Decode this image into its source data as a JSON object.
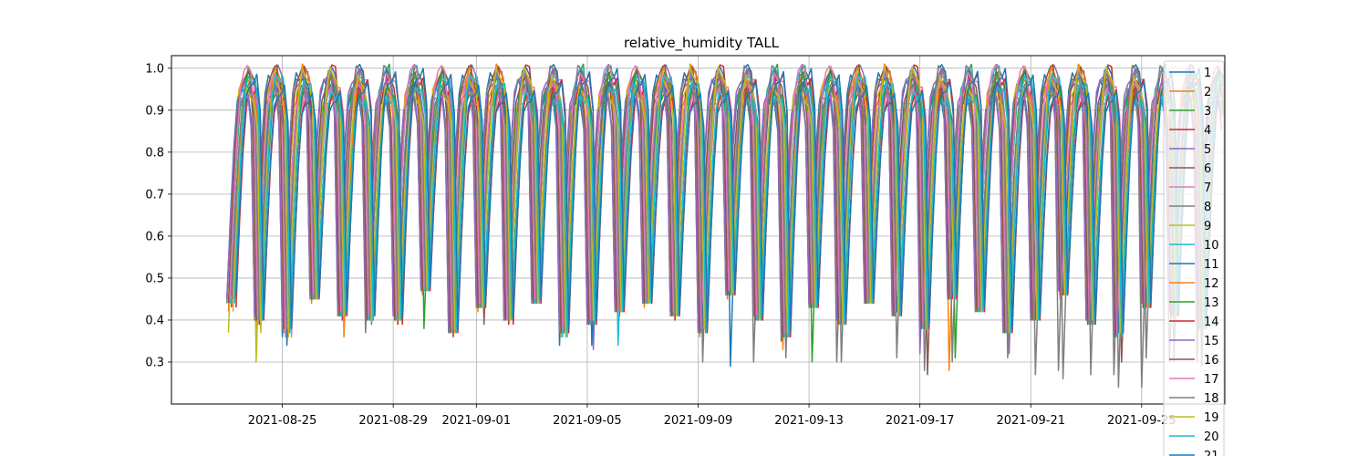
{
  "chart_data": {
    "type": "line",
    "title": "relative_humidity TALL",
    "xlabel": "",
    "ylabel": "",
    "x_start": "2021-08-23",
    "x_end": "2021-09-27",
    "xlim": [
      "2021-08-21",
      "2021-09-28"
    ],
    "ylim": [
      0.2,
      1.03
    ],
    "x_ticks": [
      "2021-08-25",
      "2021-08-29",
      "2021-09-01",
      "2021-09-05",
      "2021-09-09",
      "2021-09-13",
      "2021-09-17",
      "2021-09-21",
      "2021-09-25"
    ],
    "y_ticks": [
      0.3,
      0.4,
      0.5,
      0.6,
      0.7,
      0.8,
      0.9,
      1.0
    ],
    "grid": true,
    "legend_position": "right",
    "samples_per_day": 8,
    "series": [
      {
        "name": "1",
        "color": "#1f77b4",
        "lows": [
          0.45,
          0.4,
          0.36,
          0.46,
          0.43,
          0.42,
          0.41,
          0.48,
          0.37,
          0.44,
          0.4,
          0.45,
          0.34,
          0.39,
          0.43,
          0.46,
          0.42,
          0.38,
          0.47,
          0.41,
          0.35,
          0.44,
          0.4,
          0.45,
          0.42,
          0.39,
          0.46,
          0.43,
          0.38,
          0.41,
          0.47,
          0.4,
          0.36,
          0.44,
          0.42,
          0.39
        ]
      },
      {
        "name": "2",
        "color": "#ff7f0e",
        "lows": [
          0.42,
          0.38,
          0.37,
          0.44,
          0.41,
          0.43,
          0.4,
          0.46,
          0.38,
          0.42,
          0.41,
          0.44,
          0.36,
          0.4,
          0.42,
          0.43,
          0.41,
          0.36,
          0.45,
          0.4,
          0.33,
          0.43,
          0.39,
          0.44,
          0.41,
          0.38,
          0.28,
          0.42,
          0.37,
          0.4,
          0.45,
          0.39,
          0.37,
          0.43,
          0.41,
          0.38
        ]
      },
      {
        "name": "3",
        "color": "#2ca02c",
        "lows": [
          0.44,
          0.41,
          0.38,
          0.45,
          0.42,
          0.4,
          0.42,
          0.38,
          0.39,
          0.43,
          0.42,
          0.46,
          0.38,
          0.41,
          0.44,
          0.45,
          0.43,
          0.4,
          0.46,
          0.42,
          0.37,
          0.3,
          0.41,
          0.46,
          0.43,
          0.4,
          0.47,
          0.44,
          0.39,
          0.42,
          0.46,
          0.41,
          0.38,
          0.45,
          0.43,
          0.4
        ]
      },
      {
        "name": "4",
        "color": "#d62728",
        "lows": [
          0.43,
          0.39,
          0.39,
          0.45,
          0.4,
          0.41,
          0.39,
          0.47,
          0.36,
          0.43,
          0.39,
          0.44,
          0.37,
          0.4,
          0.41,
          0.44,
          0.4,
          0.32,
          0.46,
          0.4,
          0.36,
          0.43,
          0.39,
          0.45,
          0.42,
          0.38,
          0.45,
          0.42,
          0.37,
          0.4,
          0.46,
          0.39,
          0.37,
          0.43,
          0.41,
          0.38
        ]
      },
      {
        "name": "5",
        "color": "#9467bd",
        "lows": [
          0.46,
          0.42,
          0.4,
          0.47,
          0.43,
          0.39,
          0.43,
          0.49,
          0.38,
          0.45,
          0.42,
          0.46,
          0.39,
          0.33,
          0.43,
          0.45,
          0.42,
          0.38,
          0.47,
          0.41,
          0.37,
          0.44,
          0.4,
          0.46,
          0.43,
          0.39,
          0.47,
          0.43,
          0.32,
          0.42,
          0.47,
          0.41,
          0.38,
          0.44,
          0.42,
          0.4
        ]
      },
      {
        "name": "6",
        "color": "#8c564b",
        "lows": [
          0.44,
          0.4,
          0.38,
          0.46,
          0.42,
          0.4,
          0.4,
          0.47,
          0.37,
          0.39,
          0.41,
          0.45,
          0.38,
          0.4,
          0.42,
          0.45,
          0.41,
          0.37,
          0.46,
          0.4,
          0.36,
          0.43,
          0.4,
          0.44,
          0.42,
          0.27,
          0.46,
          0.42,
          0.38,
          0.41,
          0.46,
          0.4,
          0.3,
          0.44,
          0.41,
          0.39
        ]
      },
      {
        "name": "7",
        "color": "#e377c2",
        "lows": [
          0.45,
          0.41,
          0.36,
          0.46,
          0.42,
          0.41,
          0.41,
          0.48,
          0.38,
          0.44,
          0.4,
          0.45,
          0.38,
          0.4,
          0.42,
          0.45,
          0.42,
          0.38,
          0.47,
          0.41,
          0.37,
          0.44,
          0.4,
          0.45,
          0.42,
          0.39,
          0.46,
          0.43,
          0.38,
          0.41,
          0.46,
          0.4,
          0.37,
          0.44,
          0.42,
          0.39
        ]
      },
      {
        "name": "8",
        "color": "#7f7f7f",
        "lows": [
          0.44,
          0.4,
          0.38,
          0.45,
          0.41,
          0.37,
          0.42,
          0.47,
          0.37,
          0.43,
          0.4,
          0.44,
          0.37,
          0.39,
          0.42,
          0.44,
          0.41,
          0.37,
          0.46,
          0.3,
          0.36,
          0.43,
          0.3,
          0.44,
          0.41,
          0.38,
          0.45,
          0.42,
          0.37,
          0.4,
          0.28,
          0.4,
          0.27,
          0.24,
          0.3,
          0.3
        ]
      },
      {
        "name": "9",
        "color": "#bcbd22",
        "lows": [
          0.37,
          0.3,
          0.37,
          0.45,
          0.41,
          0.4,
          0.4,
          0.47,
          0.38,
          0.43,
          0.4,
          0.44,
          0.36,
          0.4,
          0.42,
          0.44,
          0.41,
          0.38,
          0.46,
          0.4,
          0.54,
          0.43,
          0.39,
          0.44,
          0.42,
          0.38,
          0.46,
          0.42,
          0.37,
          0.4,
          0.46,
          0.4,
          0.37,
          0.43,
          0.41,
          0.39
        ]
      },
      {
        "name": "10",
        "color": "#17becf",
        "lows": [
          0.44,
          0.4,
          0.37,
          0.45,
          0.41,
          0.4,
          0.4,
          0.47,
          0.37,
          0.43,
          0.4,
          0.44,
          0.36,
          0.39,
          0.34,
          0.44,
          0.41,
          0.37,
          0.46,
          0.4,
          0.36,
          0.43,
          0.39,
          0.44,
          0.41,
          0.38,
          0.45,
          0.42,
          0.37,
          0.4,
          0.46,
          0.39,
          0.36,
          0.43,
          0.41,
          0.38
        ]
      },
      {
        "name": "11",
        "color": "#1f77b4",
        "lows": [
          0.46,
          0.41,
          0.34,
          0.46,
          0.42,
          0.41,
          0.41,
          0.48,
          0.38,
          0.44,
          0.41,
          0.45,
          0.38,
          0.34,
          0.43,
          0.45,
          0.42,
          0.38,
          0.29,
          0.41,
          0.37,
          0.44,
          0.4,
          0.45,
          0.42,
          0.39,
          0.46,
          0.43,
          0.38,
          0.41,
          0.47,
          0.4,
          0.37,
          0.44,
          0.42,
          0.39
        ]
      },
      {
        "name": "12",
        "color": "#ff7f0e",
        "lows": [
          0.45,
          0.4,
          0.37,
          0.45,
          0.36,
          0.4,
          0.4,
          0.48,
          0.37,
          0.44,
          0.4,
          0.45,
          0.37,
          0.4,
          0.42,
          0.45,
          0.42,
          0.38,
          0.47,
          0.41,
          0.36,
          0.44,
          0.4,
          0.45,
          0.42,
          0.38,
          0.46,
          0.43,
          0.38,
          0.41,
          0.46,
          0.4,
          0.37,
          0.44,
          0.42,
          0.39
        ]
      },
      {
        "name": "13",
        "color": "#2ca02c",
        "lows": [
          0.44,
          0.41,
          0.38,
          0.46,
          0.42,
          0.4,
          0.41,
          0.47,
          0.38,
          0.44,
          0.41,
          0.45,
          0.38,
          0.4,
          0.43,
          0.45,
          0.42,
          0.39,
          0.47,
          0.41,
          0.38,
          0.44,
          0.4,
          0.45,
          0.43,
          0.39,
          0.31,
          0.43,
          0.39,
          0.41,
          0.47,
          0.41,
          0.38,
          0.44,
          0.42,
          0.4
        ]
      },
      {
        "name": "14",
        "color": "#d62728",
        "lows": [
          0.43,
          0.4,
          0.38,
          0.45,
          0.41,
          0.41,
          0.39,
          0.47,
          0.37,
          0.43,
          0.39,
          0.44,
          0.37,
          0.39,
          0.42,
          0.44,
          0.41,
          0.37,
          0.46,
          0.4,
          0.36,
          0.43,
          0.39,
          0.44,
          0.41,
          0.38,
          0.45,
          0.42,
          0.37,
          0.4,
          0.46,
          0.39,
          0.37,
          0.43,
          0.41,
          0.38
        ]
      },
      {
        "name": "15",
        "color": "#9467bd",
        "lows": [
          0.45,
          0.41,
          0.39,
          0.46,
          0.42,
          0.4,
          0.41,
          0.48,
          0.38,
          0.44,
          0.4,
          0.45,
          0.38,
          0.4,
          0.43,
          0.45,
          0.42,
          0.38,
          0.47,
          0.41,
          0.37,
          0.44,
          0.4,
          0.45,
          0.42,
          0.32,
          0.46,
          0.43,
          0.38,
          0.41,
          0.47,
          0.4,
          0.37,
          0.44,
          0.42,
          0.39
        ]
      },
      {
        "name": "16",
        "color": "#8c564b",
        "lows": [
          0.44,
          0.4,
          0.38,
          0.45,
          0.41,
          0.4,
          0.4,
          0.47,
          0.37,
          0.43,
          0.4,
          0.44,
          0.37,
          0.39,
          0.42,
          0.44,
          0.41,
          0.37,
          0.46,
          0.4,
          0.36,
          0.43,
          0.39,
          0.44,
          0.41,
          0.38,
          0.45,
          0.42,
          0.37,
          0.4,
          0.46,
          0.39,
          0.36,
          0.43,
          0.41,
          0.38
        ]
      },
      {
        "name": "17",
        "color": "#e377c2",
        "lows": [
          0.45,
          0.41,
          0.36,
          0.46,
          0.42,
          0.41,
          0.41,
          0.48,
          0.38,
          0.44,
          0.4,
          0.45,
          0.38,
          0.4,
          0.42,
          0.45,
          0.42,
          0.38,
          0.47,
          0.41,
          0.37,
          0.44,
          0.4,
          0.45,
          0.42,
          0.39,
          0.46,
          0.43,
          0.38,
          0.41,
          0.46,
          0.4,
          0.37,
          0.44,
          0.42,
          0.39
        ]
      },
      {
        "name": "18",
        "color": "#7f7f7f",
        "lows": [
          0.44,
          0.4,
          0.38,
          0.45,
          0.41,
          0.4,
          0.4,
          0.47,
          0.37,
          0.43,
          0.4,
          0.44,
          0.37,
          0.39,
          0.42,
          0.44,
          0.41,
          0.3,
          0.46,
          0.4,
          0.31,
          0.43,
          0.3,
          0.44,
          0.31,
          0.28,
          0.3,
          0.42,
          0.31,
          0.27,
          0.26,
          0.27,
          0.24,
          0.31,
          0.3,
          0.29
        ]
      },
      {
        "name": "19",
        "color": "#bcbd22",
        "lows": [
          0.42,
          0.37,
          0.36,
          0.45,
          0.41,
          0.4,
          0.4,
          0.47,
          0.38,
          0.43,
          0.4,
          0.44,
          0.36,
          0.4,
          0.42,
          0.44,
          0.41,
          0.38,
          0.46,
          0.4,
          0.37,
          0.43,
          0.39,
          0.44,
          0.42,
          0.38,
          0.46,
          0.42,
          0.37,
          0.4,
          0.46,
          0.4,
          0.37,
          0.43,
          0.41,
          0.39
        ]
      },
      {
        "name": "20",
        "color": "#17becf",
        "lows": [
          0.44,
          0.4,
          0.37,
          0.45,
          0.41,
          0.4,
          0.4,
          0.47,
          0.37,
          0.43,
          0.4,
          0.44,
          0.36,
          0.39,
          0.42,
          0.44,
          0.41,
          0.37,
          0.46,
          0.4,
          0.36,
          0.43,
          0.39,
          0.44,
          0.41,
          0.38,
          0.45,
          0.42,
          0.37,
          0.4,
          0.46,
          0.39,
          0.36,
          0.43,
          0.41,
          0.38
        ]
      },
      {
        "name": "21",
        "color": "#1f77b4",
        "lows": [
          0.46,
          0.41,
          0.38,
          0.46,
          0.42,
          0.41,
          0.41,
          0.48,
          0.38,
          0.44,
          0.41,
          0.45,
          0.38,
          0.4,
          0.43,
          0.45,
          0.42,
          0.38,
          0.47,
          0.41,
          0.37,
          0.44,
          0.4,
          0.45,
          0.42,
          0.39,
          0.46,
          0.43,
          0.38,
          0.41,
          0.47,
          0.4,
          0.37,
          0.44,
          0.42,
          0.39
        ]
      }
    ]
  }
}
